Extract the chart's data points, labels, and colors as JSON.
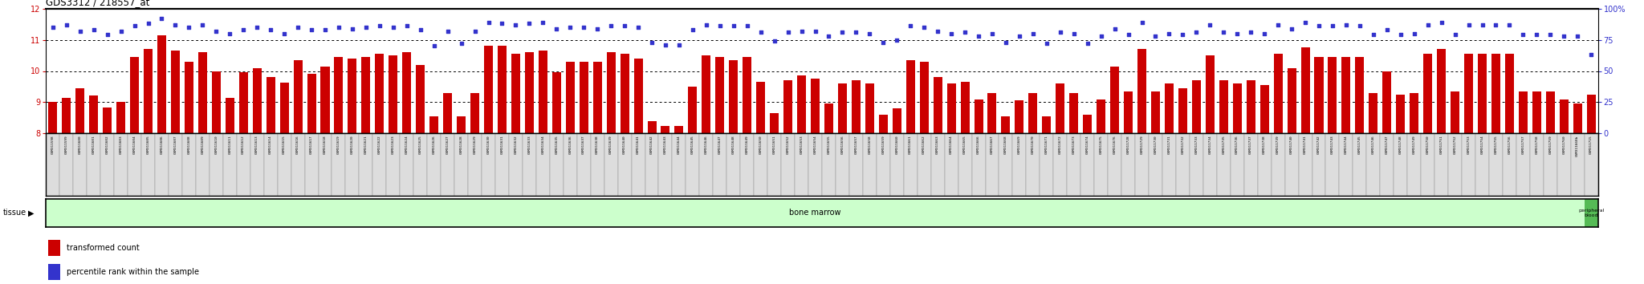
{
  "title": "GDS3312 / 218557_at",
  "samples": [
    "GSM311598",
    "GSM311599",
    "GSM311600",
    "GSM311601",
    "GSM311602",
    "GSM311603",
    "GSM311604",
    "GSM311605",
    "GSM311606",
    "GSM311607",
    "GSM311608",
    "GSM311609",
    "GSM311610",
    "GSM311611",
    "GSM311612",
    "GSM311613",
    "GSM311614",
    "GSM311615",
    "GSM311616",
    "GSM311617",
    "GSM311618",
    "GSM311619",
    "GSM311620",
    "GSM311621",
    "GSM311622",
    "GSM311623",
    "GSM311624",
    "GSM311625",
    "GSM311626",
    "GSM311627",
    "GSM311628",
    "GSM311629",
    "GSM311630",
    "GSM311631",
    "GSM311632",
    "GSM311633",
    "GSM311634",
    "GSM311635",
    "GSM311636",
    "GSM311637",
    "GSM311638",
    "GSM311639",
    "GSM311640",
    "GSM311641",
    "GSM311642",
    "GSM311643",
    "GSM311644",
    "GSM311645",
    "GSM311646",
    "GSM311647",
    "GSM311648",
    "GSM311649",
    "GSM311650",
    "GSM311651",
    "GSM311652",
    "GSM311653",
    "GSM311654",
    "GSM311655",
    "GSM311656",
    "GSM311657",
    "GSM311658",
    "GSM311659",
    "GSM311660",
    "GSM311661",
    "GSM311662",
    "GSM311663",
    "GSM311664",
    "GSM311665",
    "GSM311666",
    "GSM311667",
    "GSM311668",
    "GSM311669",
    "GSM311670",
    "GSM311671",
    "GSM311672",
    "GSM311673",
    "GSM311674",
    "GSM311675",
    "GSM311676",
    "GSM311728",
    "GSM311729",
    "GSM311730",
    "GSM311731",
    "GSM311732",
    "GSM311733",
    "GSM311734",
    "GSM311735",
    "GSM311736",
    "GSM311737",
    "GSM311738",
    "GSM311739",
    "GSM311740",
    "GSM311741",
    "GSM311742",
    "GSM311743",
    "GSM311744",
    "GSM311745",
    "GSM311746",
    "GSM311747",
    "GSM311748",
    "GSM311749",
    "GSM311750",
    "GSM311751",
    "GSM311752",
    "GSM311753",
    "GSM311754",
    "GSM311755",
    "GSM311756",
    "GSM311757",
    "GSM311758",
    "GSM311759",
    "GSM311760",
    "GSM311668b",
    "GSM311715"
  ],
  "bar_values": [
    9.0,
    9.15,
    9.45,
    9.22,
    8.82,
    9.0,
    10.45,
    10.7,
    11.15,
    10.65,
    10.3,
    10.6,
    10.0,
    9.15,
    9.95,
    10.1,
    9.8,
    9.62,
    10.35,
    9.92,
    10.15,
    10.45,
    10.4,
    10.45,
    10.55,
    10.5,
    10.6,
    10.2,
    8.55,
    9.3,
    8.55,
    9.3,
    10.8,
    10.8,
    10.55,
    10.6,
    10.65,
    9.95,
    10.3,
    10.3,
    10.3,
    10.6,
    10.55,
    10.4,
    8.4,
    8.25,
    8.25,
    9.5,
    10.5,
    10.45,
    10.35,
    10.45,
    9.65,
    8.65,
    9.7,
    9.85,
    9.75,
    8.95,
    9.6,
    9.7,
    9.6,
    8.6,
    8.8,
    10.35,
    10.3,
    9.8,
    9.6,
    9.65,
    9.1,
    9.3,
    8.55,
    9.05,
    9.3,
    8.55,
    9.6,
    9.3,
    8.6,
    9.1,
    10.15,
    9.35,
    10.7,
    9.35,
    9.6,
    9.45,
    9.7,
    10.5,
    9.7,
    9.6,
    9.7,
    9.55,
    10.55,
    10.1,
    10.75,
    10.45,
    10.45,
    10.45,
    10.45,
    9.3,
    10.0,
    9.25,
    9.3,
    10.55,
    10.7,
    9.35,
    10.55,
    10.55,
    10.55,
    10.55,
    9.35,
    9.35,
    9.35,
    9.1,
    8.95,
    9.25
  ],
  "dot_values": [
    85,
    87,
    82,
    83,
    79,
    82,
    86,
    88,
    92,
    87,
    85,
    87,
    82,
    80,
    83,
    85,
    83,
    80,
    85,
    83,
    83,
    85,
    84,
    85,
    86,
    85,
    86,
    83,
    70,
    82,
    72,
    82,
    89,
    88,
    87,
    88,
    89,
    84,
    85,
    85,
    84,
    86,
    86,
    85,
    73,
    71,
    71,
    83,
    87,
    86,
    86,
    86,
    81,
    74,
    81,
    82,
    82,
    78,
    81,
    81,
    80,
    73,
    75,
    86,
    85,
    82,
    80,
    81,
    78,
    80,
    73,
    78,
    80,
    72,
    81,
    80,
    72,
    78,
    84,
    79,
    89,
    78,
    80,
    79,
    81,
    87,
    81,
    80,
    81,
    80,
    87,
    84,
    89,
    86,
    86,
    87,
    86,
    79,
    83,
    79,
    80,
    87,
    89,
    79,
    87,
    87,
    87,
    87,
    79,
    79,
    79,
    78,
    78,
    63
  ],
  "ylim_left": [
    8,
    12
  ],
  "ylim_right": [
    0,
    100
  ],
  "yticks_left": [
    8,
    9,
    10,
    11,
    12
  ],
  "yticks_right": [
    0,
    25,
    50,
    75,
    100
  ],
  "ytick_labels_right": [
    "0",
    "25",
    "50",
    "75",
    "100%"
  ],
  "bar_color": "#cc0000",
  "dot_color": "#3333cc",
  "tissue_bone_marrow_color": "#ccffcc",
  "tissue_peripheral_blood_color": "#55bb55",
  "tissue_label": "tissue",
  "bone_marrow_label": "bone marrow",
  "peripheral_blood_label": "peripheral\nblood",
  "legend_bar_label": "transformed count",
  "legend_dot_label": "percentile rank within the sample",
  "background_color": "#ffffff",
  "plot_bg_color": "#ffffff",
  "n_bone_marrow": 113,
  "n_peripheral_blood": 1,
  "fig_width": 20.48,
  "fig_height": 3.54
}
